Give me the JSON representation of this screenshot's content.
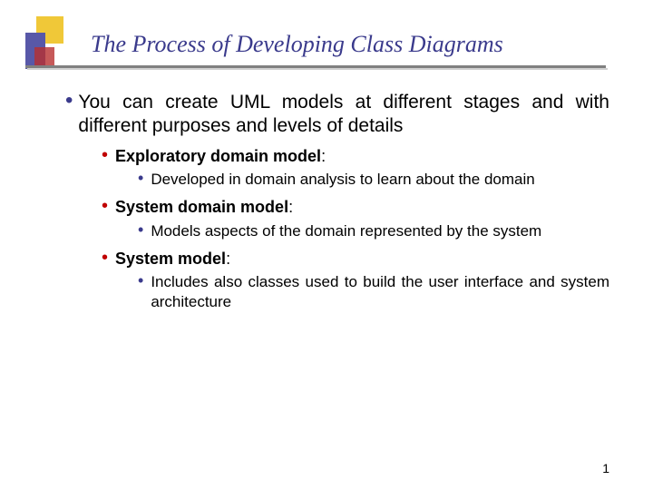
{
  "colors": {
    "title": "#3a3a8c",
    "bullet_main": "#3a3a8c",
    "bullet_level2": "#c00000",
    "bullet_level3": "#3a3a8c",
    "square_yellow": "#f0c838",
    "square_blue": "#5858a8",
    "square_red": "#b83030"
  },
  "slide": {
    "title": "The Process of Developing  Class Diagrams",
    "page_number": "1"
  },
  "content": {
    "main_point": "You can create UML models at different stages and with different purposes and levels of details",
    "items": [
      {
        "heading": "Exploratory domain model",
        "detail": "Developed in domain analysis to learn about the domain"
      },
      {
        "heading": "System domain model",
        "detail": "Models aspects of the domain represented by the system"
      },
      {
        "heading": "System model",
        "detail": "Includes also classes used to build the user interface and system architecture"
      }
    ]
  }
}
